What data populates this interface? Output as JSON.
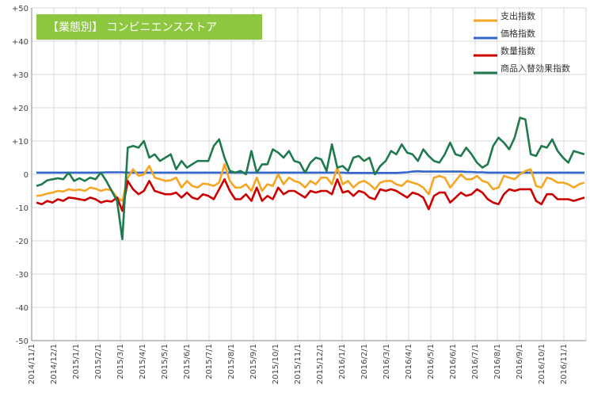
{
  "chart_data": {
    "type": "line",
    "title": "【業態別】 コンビニエンスストア",
    "title_bg_color": "#8dc63f",
    "ylim": [
      -50,
      50
    ],
    "y_ticks": [
      50,
      40,
      30,
      20,
      10,
      0,
      -10,
      -20,
      -30,
      -40,
      -50
    ],
    "y_tick_labels": [
      "+50",
      "+40",
      "+30",
      "+20",
      "+10",
      "0",
      "-10",
      "-20",
      "-30",
      "-40",
      "-50"
    ],
    "x_tick_labels": [
      "2014/11/1",
      "2014/12/1",
      "2015/1/1",
      "2015/2/1",
      "2015/3/1",
      "2015/4/1",
      "2015/5/1",
      "2015/6/1",
      "2015/7/1",
      "2015/8/1",
      "2015/9/1",
      "2015/10/1",
      "2015/11/1",
      "2015/12/1",
      "2016/1/1",
      "2016/2/1",
      "2016/3/1",
      "2016/4/1",
      "2016/5/1",
      "2016/6/1",
      "2016/7/1",
      "2016/8/1",
      "2016/9/1",
      "2016/10/1",
      "2016/11/1"
    ],
    "x_start": "2014/11/1",
    "x_step": "7 days",
    "grid": true,
    "legend_position": "top-right",
    "series": [
      {
        "name": "支出指数",
        "color": "#f5a623",
        "values": [
          -6.5,
          -6.3,
          -5.8,
          -5.5,
          -5,
          -5.2,
          -4.5,
          -4.8,
          -4.6,
          -5,
          -4,
          -4.3,
          -5,
          -4.5,
          -4.8,
          -7,
          -8,
          -1,
          1.5,
          -0.5,
          0,
          2.5,
          -1,
          -1.5,
          -2,
          -1.8,
          -1,
          -4,
          -2,
          -3.5,
          -4,
          -2.8,
          -3,
          -3.5,
          -2.5,
          3,
          -2,
          -4,
          -4,
          -3,
          -5,
          -1,
          -5,
          -3,
          -3.5,
          0,
          -3,
          -1,
          -2,
          -2.5,
          -4,
          -2,
          -3,
          -1,
          -1,
          -3,
          2,
          -3,
          -2,
          -4,
          -2.5,
          -2,
          -3,
          -4.5,
          -2.5,
          -2,
          -2,
          -3,
          -3.5,
          -2,
          -2.5,
          -3,
          -4,
          -6,
          -1,
          -0.5,
          -1,
          -4,
          -2,
          0,
          -1.5,
          -1.5,
          -0.5,
          -2,
          -2.5,
          -4.5,
          -4,
          -0.5,
          -1,
          -1.5,
          0,
          1,
          1.5,
          -3.5,
          -4,
          -1,
          -1.5,
          -2.5,
          -2.5,
          -3,
          -4,
          -3,
          -2.5
        ]
      },
      {
        "name": "価格指数",
        "color": "#3366cc",
        "values": [
          0.5,
          0.5,
          0.5,
          0.5,
          0.5,
          0.5,
          0.5,
          0.5,
          0.5,
          0.5,
          0.5,
          0.5,
          0.5,
          0.6,
          0.6,
          0.6,
          0.6,
          0.5,
          0.5,
          0.5,
          0.5,
          0.5,
          0.5,
          0.5,
          0.5,
          0.5,
          0.5,
          0.5,
          0.5,
          0.5,
          0.5,
          0.5,
          0.5,
          0.5,
          0.5,
          0.5,
          0.5,
          0.5,
          0.5,
          0.5,
          0.5,
          0.5,
          0.5,
          0.5,
          0.5,
          0.5,
          0.5,
          0.5,
          0.5,
          0.5,
          0.5,
          0.5,
          0.5,
          0.5,
          0.5,
          0.5,
          0.5,
          0.5,
          0.4,
          0.4,
          0.4,
          0.4,
          0.4,
          0.4,
          0.4,
          0.4,
          0.4,
          0.4,
          0.5,
          0.6,
          0.8,
          0.9,
          0.8,
          0.8,
          0.8,
          0.8,
          0.8,
          0.8,
          0.8,
          0.8,
          0.7,
          0.7,
          0.6,
          0.6,
          0.5,
          0.5,
          0.5,
          0.5,
          0.5,
          0.5,
          0.5,
          0.5,
          0.5,
          0.5,
          0.5,
          0.5,
          0.5,
          0.5,
          0.5,
          0.5,
          0.5,
          0.5,
          0.5
        ]
      },
      {
        "name": "数量指数",
        "color": "#cc0000",
        "values": [
          -8.5,
          -9,
          -8,
          -8.5,
          -7.5,
          -8,
          -7,
          -7.2,
          -7.5,
          -7.8,
          -7,
          -7.5,
          -8.5,
          -8,
          -8.2,
          -7,
          -11,
          -2,
          -4.5,
          -6,
          -5,
          -2,
          -5,
          -5.5,
          -6,
          -6,
          -5.5,
          -7,
          -5.5,
          -7,
          -7.5,
          -6,
          -6.5,
          -7.5,
          -4.5,
          -1.5,
          -5,
          -7.5,
          -7.5,
          -6,
          -8,
          -4,
          -8,
          -6.5,
          -7.5,
          -4,
          -6,
          -5,
          -5,
          -6,
          -7,
          -5,
          -5.5,
          -5,
          -5,
          -6,
          -1.5,
          -5.5,
          -5,
          -6.5,
          -5,
          -5.5,
          -7,
          -7.5,
          -4.5,
          -5,
          -4.5,
          -5,
          -6,
          -7,
          -5.5,
          -6,
          -7,
          -10.5,
          -6.5,
          -5.5,
          -5.5,
          -8.5,
          -7,
          -5.5,
          -6.5,
          -6,
          -4.5,
          -5.5,
          -7.5,
          -8.5,
          -9,
          -6,
          -4.5,
          -5,
          -4.5,
          -4.5,
          -4.5,
          -8,
          -9,
          -6,
          -6,
          -7.5,
          -7.5,
          -7.5,
          -8,
          -7.5,
          -7
        ]
      },
      {
        "name": "商品入替効果指数",
        "color": "#1f7a4d",
        "values": [
          -3.5,
          -3,
          -1.8,
          -1.5,
          -1.2,
          -1.5,
          0.5,
          -2,
          -1.2,
          -2,
          -1,
          -1.5,
          0.5,
          -2,
          -5,
          -8,
          -19.5,
          8,
          8.5,
          8,
          10,
          5,
          6,
          4,
          5,
          6,
          1.5,
          4,
          2,
          3,
          4,
          4,
          4,
          8.5,
          10.5,
          5,
          1,
          0.5,
          1,
          0,
          7,
          0.5,
          3,
          3,
          7.5,
          6.5,
          5,
          7,
          4,
          3.5,
          0.5,
          3.5,
          5,
          4.5,
          1,
          9,
          2,
          2.5,
          1,
          5,
          5.5,
          4,
          5,
          0,
          2.5,
          4,
          7,
          6,
          9,
          6.5,
          6,
          4,
          7.5,
          5.5,
          4,
          3.5,
          6,
          9.5,
          6,
          5.5,
          8,
          6,
          3.5,
          2,
          3,
          8.5,
          11,
          9.5,
          7.5,
          11,
          17,
          16.5,
          6,
          5.5,
          8.5,
          8,
          10.5,
          7,
          5,
          3.5,
          7,
          6.5,
          6
        ]
      }
    ]
  }
}
